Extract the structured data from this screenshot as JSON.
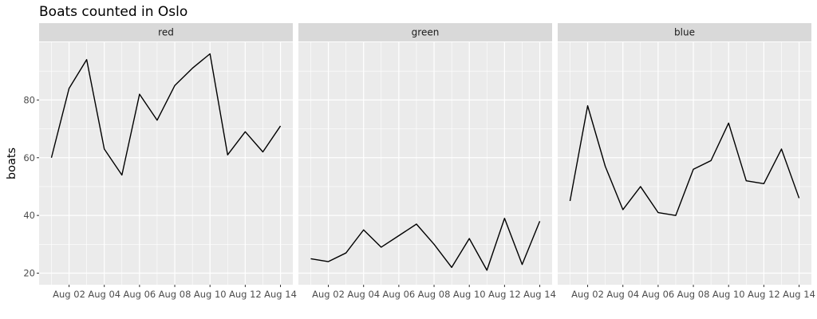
{
  "chart_data": {
    "type": "line",
    "title": "Boats counted in Oslo",
    "xlabel": "",
    "ylabel": "boats",
    "x": [
      "2024-08-01",
      "2024-08-02",
      "2024-08-03",
      "2024-08-04",
      "2024-08-05",
      "2024-08-06",
      "2024-08-07",
      "2024-08-08",
      "2024-08-09",
      "2024-08-10",
      "2024-08-11",
      "2024-08-12",
      "2024-08-13",
      "2024-08-14"
    ],
    "x_tick_values": [
      "2024-08-02",
      "2024-08-04",
      "2024-08-06",
      "2024-08-08",
      "2024-08-10",
      "2024-08-12",
      "2024-08-14"
    ],
    "x_tick_labels": [
      "Aug 02",
      "Aug 04",
      "Aug 06",
      "Aug 08",
      "Aug 10",
      "Aug 12",
      "Aug 14"
    ],
    "y_ticks": [
      20,
      40,
      60,
      80
    ],
    "ylim": [
      16,
      100
    ],
    "grid": true,
    "legend": "none",
    "facet_layout": "1 row x 3 columns, shared y axis",
    "line_color": "#000000",
    "panel_background": "#ebebeb",
    "strip_background": "#d9d9d9",
    "facets": [
      {
        "name": "red",
        "values": [
          60,
          84,
          94,
          63,
          54,
          82,
          73,
          85,
          91,
          96,
          61,
          69,
          62,
          71
        ]
      },
      {
        "name": "green",
        "values": [
          25,
          24,
          27,
          35,
          29,
          33,
          37,
          30,
          22,
          32,
          21,
          39,
          23,
          38
        ]
      },
      {
        "name": "blue",
        "values": [
          45,
          78,
          57,
          42,
          50,
          41,
          40,
          56,
          59,
          72,
          52,
          51,
          63,
          46
        ]
      }
    ]
  }
}
